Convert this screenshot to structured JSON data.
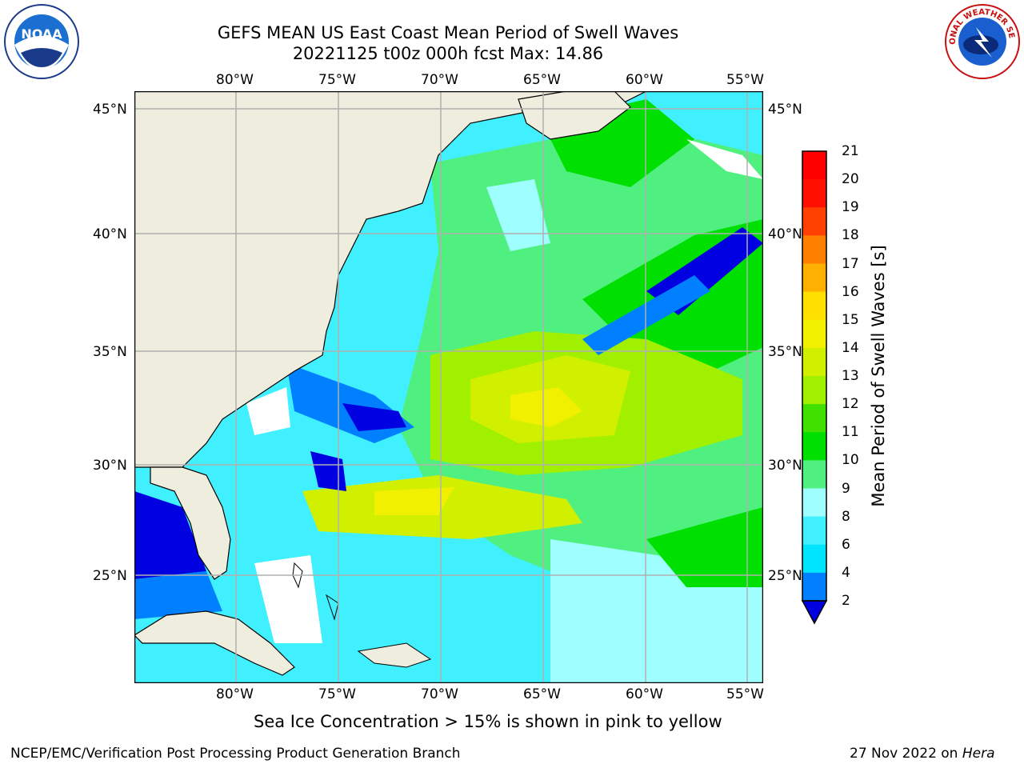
{
  "header": {
    "title_line1": "GEFS MEAN US East Coast Mean Period of Swell Waves",
    "title_line2": "20221125 t00z 000h fcst   Max: 14.86"
  },
  "logos": {
    "left": "noaa-logo",
    "left_text": "NOAA",
    "right": "national-weather-service-logo",
    "right_text": "NATIONAL WEATHER SERVICE"
  },
  "map": {
    "longitude_labels": [
      "80°W",
      "75°W",
      "70°W",
      "65°W",
      "60°W",
      "55°W"
    ],
    "latitude_labels": [
      "45°N",
      "40°N",
      "35°N",
      "30°N",
      "25°N"
    ],
    "colors": {
      "land": "#efedde",
      "ocean_no_data": "#ffffff",
      "gridline": "#b0b0b0",
      "coastline": "#000000"
    }
  },
  "colorbar": {
    "label": "Mean Period of Swell Waves [s]",
    "ticks": [
      "2",
      "4",
      "6",
      "8",
      "9",
      "10",
      "11",
      "12",
      "13",
      "14",
      "15",
      "16",
      "17",
      "18",
      "19",
      "20",
      "21"
    ],
    "colors": [
      "#0000e0",
      "#0080ff",
      "#00e5ff",
      "#40f0ff",
      "#9fffff",
      "#50f080",
      "#00e000",
      "#40e000",
      "#a0f000",
      "#d0f000",
      "#f0f000",
      "#ffe000",
      "#ffb000",
      "#ff8000",
      "#ff4000",
      "#ff1000",
      "#ff0000"
    ]
  },
  "caption": "Sea Ice Concentration > 15% is shown in pink to yellow",
  "footer": {
    "left": "NCEP/EMC/Verification Post Processing Product Generation Branch",
    "right_date": "27 Nov 2022 on ",
    "right_host": "Hera"
  }
}
